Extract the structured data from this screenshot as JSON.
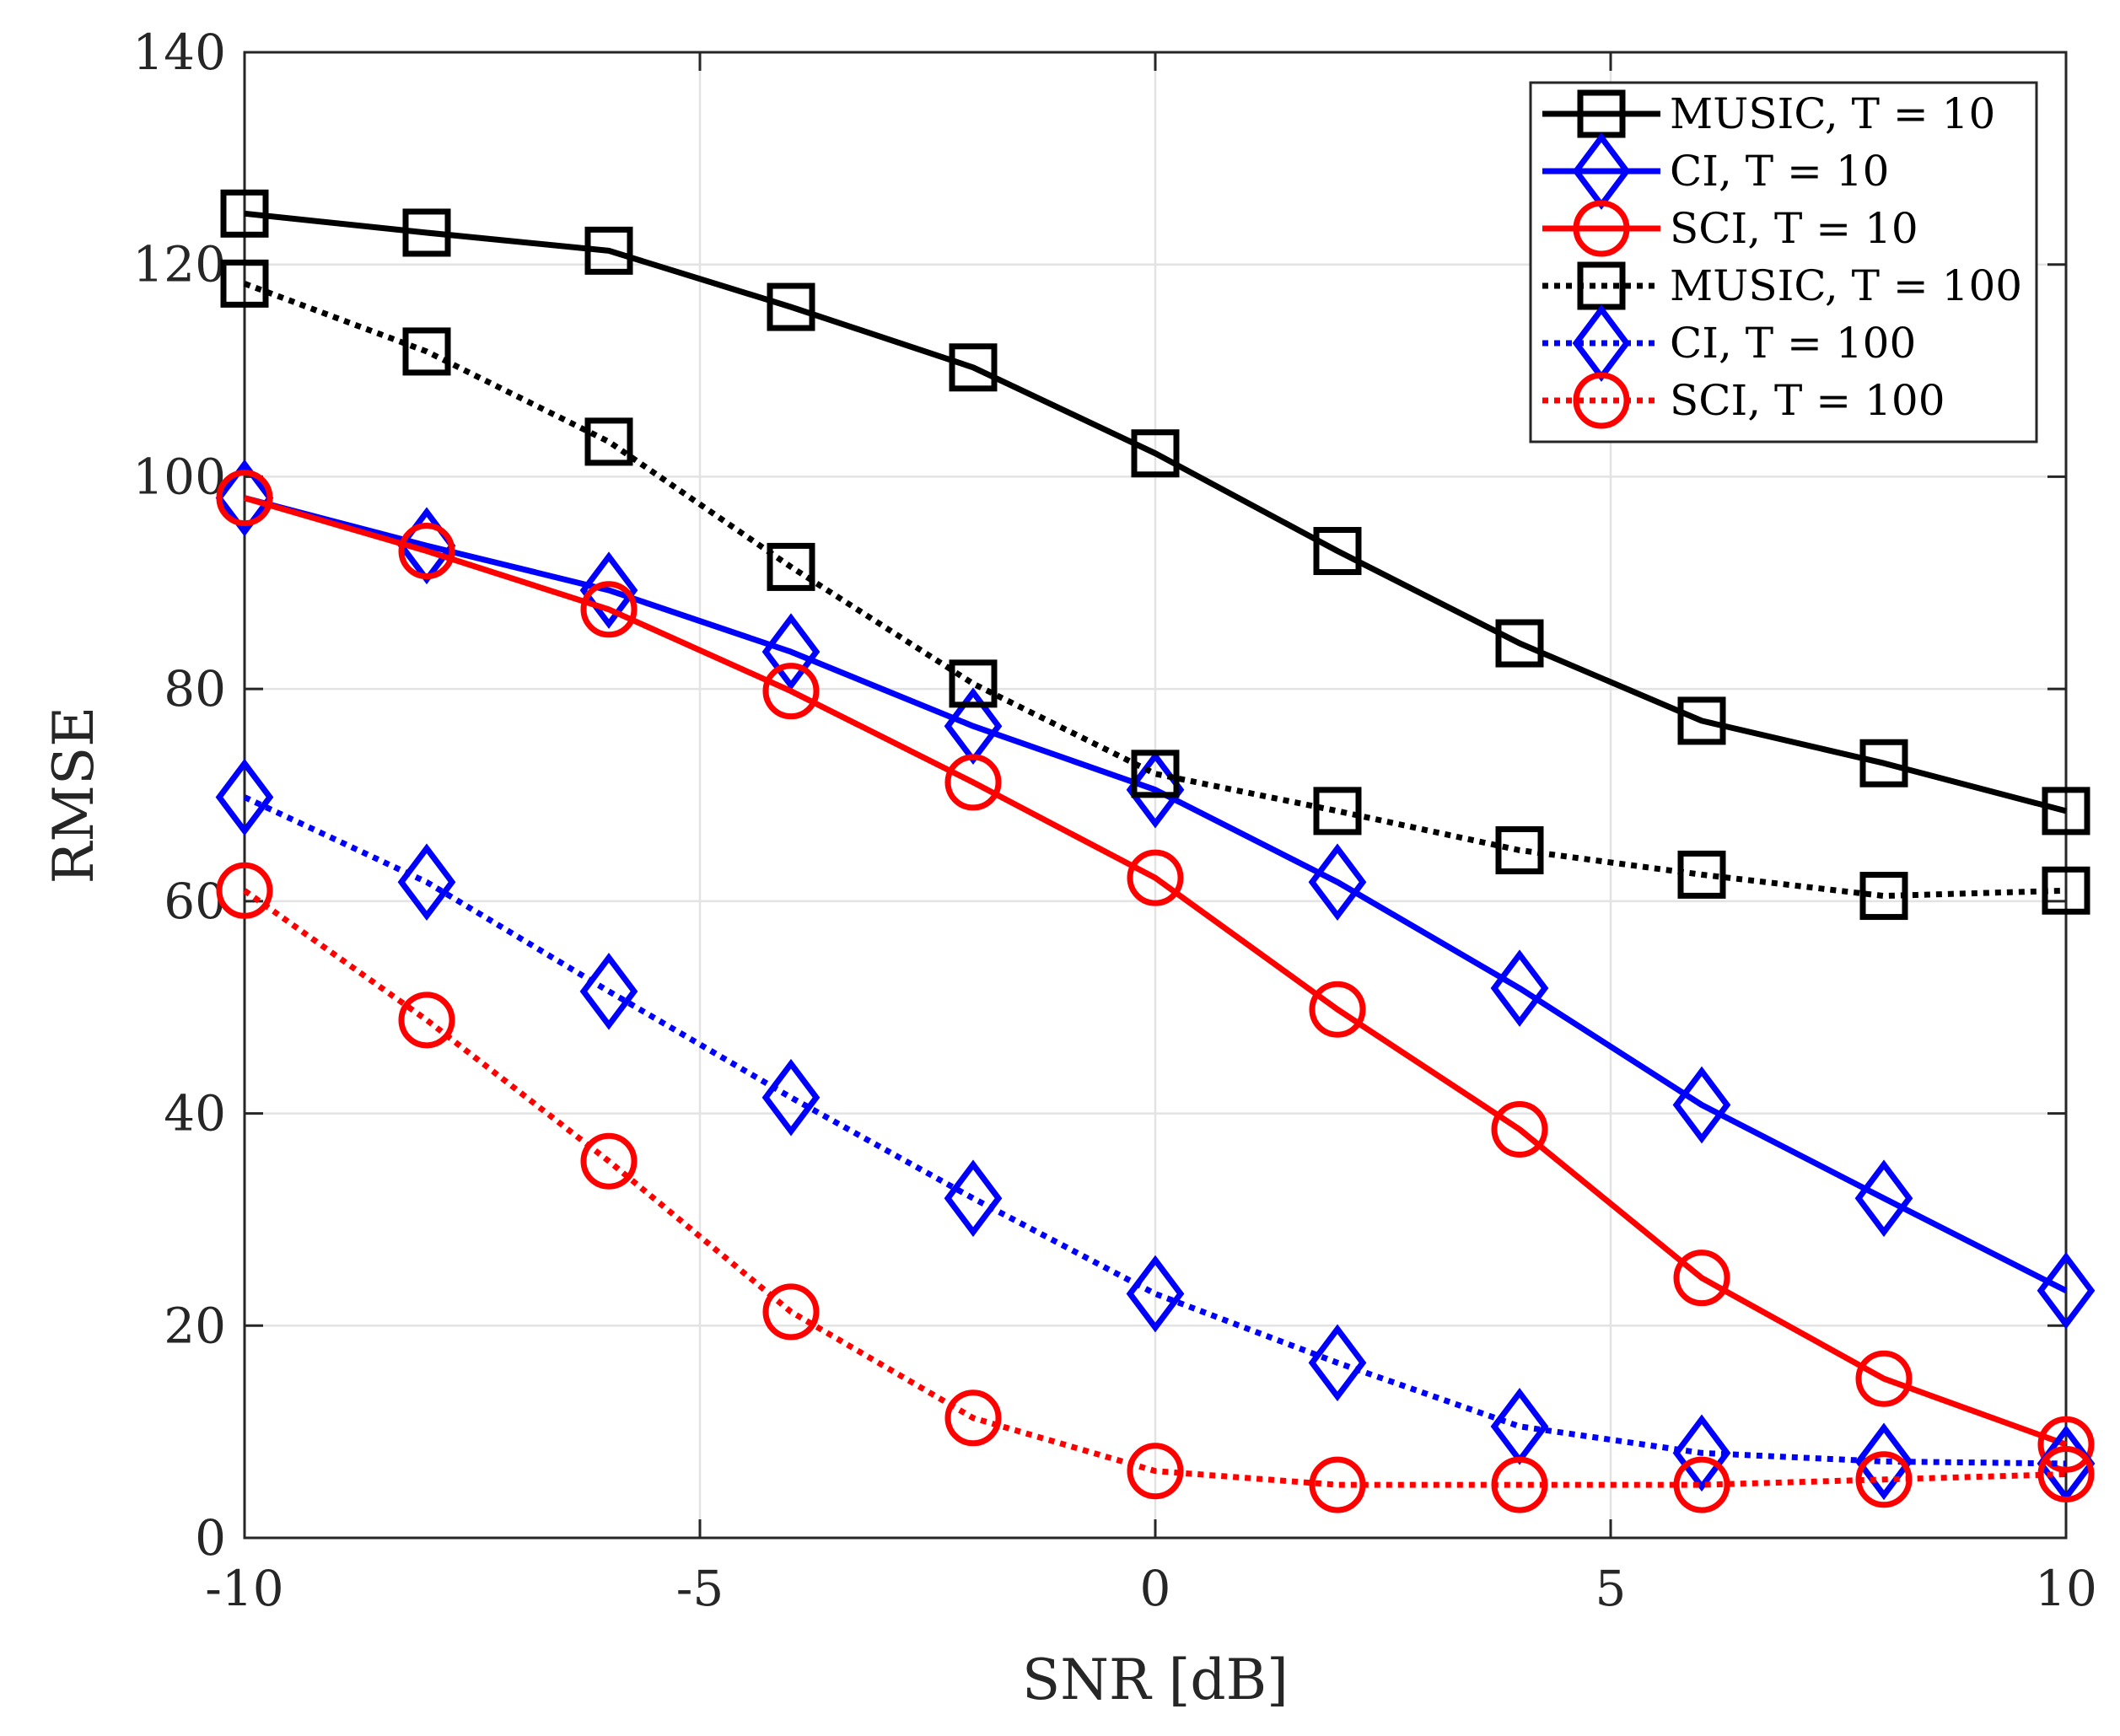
{
  "chart_data": {
    "type": "line",
    "title": "",
    "xlabel": "SNR [dB]",
    "ylabel": "RMSE",
    "xlim": [
      -10,
      10
    ],
    "ylim": [
      0,
      140
    ],
    "xticks": [
      -10,
      -5,
      0,
      5,
      10
    ],
    "xtick_labels": [
      "-10",
      "-5",
      "0",
      "5",
      "10"
    ],
    "yticks": [
      0,
      20,
      40,
      60,
      80,
      100,
      120,
      140
    ],
    "ytick_labels": [
      "0",
      "20",
      "40",
      "60",
      "80",
      "100",
      "120",
      "140"
    ],
    "grid": true,
    "legend_position": "top-right",
    "x": [
      -10,
      -8,
      -6,
      -4,
      -2,
      0,
      2,
      4,
      6,
      8,
      10
    ],
    "series": [
      {
        "name": "MUSIC, T = 10",
        "color": "#000000",
        "linestyle": "solid",
        "marker": "square",
        "values": [
          124.8,
          123.0,
          121.3,
          116.0,
          110.3,
          102.2,
          93.0,
          84.3,
          77.0,
          73.0,
          68.5
        ]
      },
      {
        "name": "CI, T = 10",
        "color": "#0000ff",
        "linestyle": "solid",
        "marker": "diamond",
        "values": [
          98.0,
          93.5,
          89.3,
          83.5,
          76.5,
          70.5,
          61.8,
          51.8,
          40.8,
          32.0,
          23.3
        ]
      },
      {
        "name": "SCI, T = 10",
        "color": "#ff0000",
        "linestyle": "solid",
        "marker": "circle",
        "values": [
          98.0,
          93.0,
          87.5,
          79.8,
          71.2,
          62.2,
          49.8,
          38.5,
          24.5,
          15.0,
          8.8
        ]
      },
      {
        "name": "MUSIC, T = 100",
        "color": "#000000",
        "linestyle": "dotted",
        "marker": "square",
        "values": [
          118.2,
          111.8,
          103.3,
          91.5,
          80.5,
          72.0,
          68.5,
          64.8,
          62.5,
          60.5,
          61.0
        ]
      },
      {
        "name": "CI, T = 100",
        "color": "#0000ff",
        "linestyle": "dotted",
        "marker": "diamond",
        "values": [
          69.8,
          61.8,
          51.5,
          41.5,
          32.0,
          23.0,
          16.5,
          10.5,
          8.0,
          7.2,
          7.0
        ]
      },
      {
        "name": "SCI, T = 100",
        "color": "#ff0000",
        "linestyle": "dotted",
        "marker": "circle",
        "values": [
          61.0,
          48.8,
          35.5,
          21.3,
          11.3,
          6.3,
          5.0,
          5.0,
          5.0,
          5.5,
          6.0
        ]
      }
    ]
  }
}
